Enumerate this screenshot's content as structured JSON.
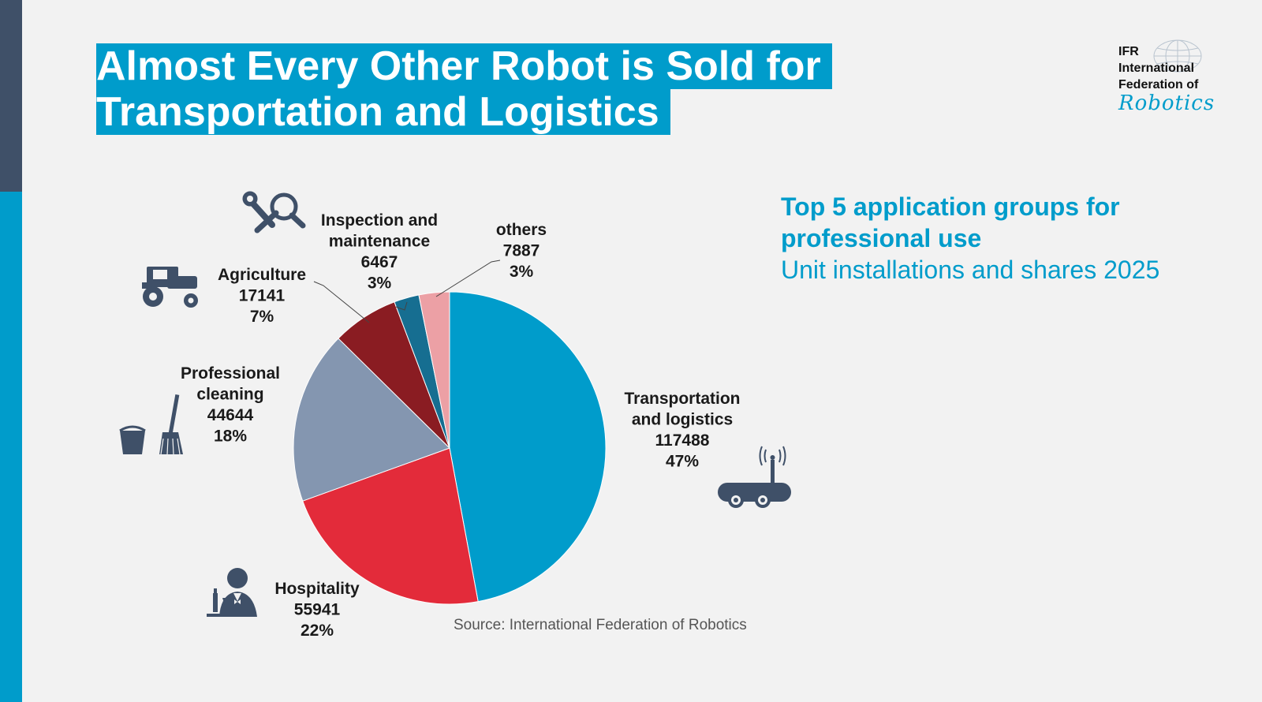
{
  "title": {
    "line1": "Almost Every Other Robot is Sold for",
    "line2": "Transportation and Logistics"
  },
  "logo": {
    "line1": "IFR",
    "line2": "International",
    "line3": "Federation of",
    "script": "Robotics"
  },
  "subtitle": {
    "line1": "Top 5 application groups for",
    "line2": "professional use",
    "line3": "Unit installations and shares 2025"
  },
  "source": "Source: International Federation of Robotics",
  "colors": {
    "accent": "#009ccb",
    "sidebar_dark": "#3f5068",
    "icon": "#3f5068"
  },
  "chart_data": {
    "type": "pie",
    "slices": [
      {
        "name": "Transportation and logistics",
        "label_lines": [
          "Transportation",
          "and logistics"
        ],
        "value": 117488,
        "pct": "47%",
        "color": "#009ccb",
        "icon": "mobile-robot-icon"
      },
      {
        "name": "Hospitality",
        "label_lines": [
          "Hospitality"
        ],
        "value": 55941,
        "pct": "22%",
        "color": "#e32b3a",
        "icon": "waiter-icon"
      },
      {
        "name": "Professional cleaning",
        "label_lines": [
          "Professional",
          "cleaning"
        ],
        "value": 44644,
        "pct": "18%",
        "color": "#8496b0",
        "icon": "cleaning-bucket-broom-icon"
      },
      {
        "name": "Agriculture",
        "label_lines": [
          "Agriculture"
        ],
        "value": 17141,
        "pct": "7%",
        "color": "#8a1c22",
        "icon": "tractor-icon"
      },
      {
        "name": "Inspection and maintenance",
        "label_lines": [
          "Inspection and",
          "maintenance"
        ],
        "value": 6467,
        "pct": "3%",
        "color": "#166e91",
        "icon": "wrench-magnifier-icon"
      },
      {
        "name": "others",
        "label_lines": [
          "others"
        ],
        "value": 7887,
        "pct": "3%",
        "color": "#eca0a5",
        "icon": ""
      }
    ]
  }
}
